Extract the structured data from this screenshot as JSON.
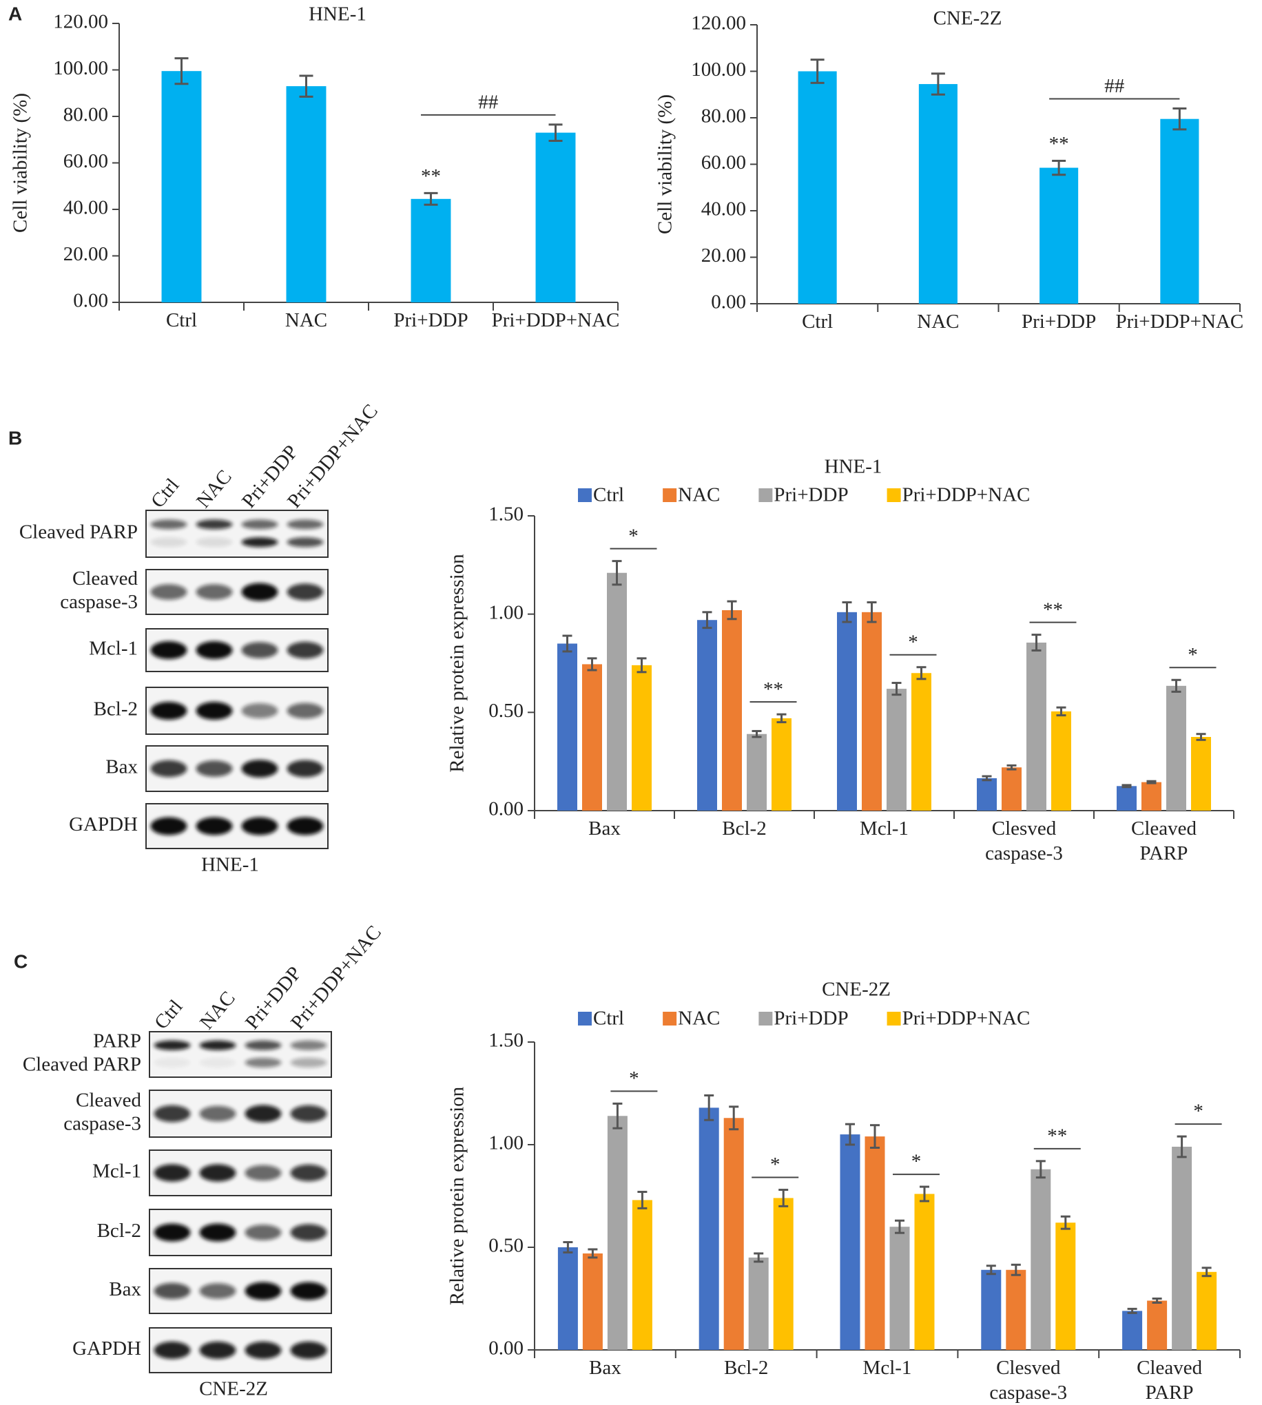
{
  "panel_labels": [
    "A",
    "B",
    "C"
  ],
  "chart_data": [
    {
      "type": "bar",
      "title": "HNE-1",
      "y_label": "Cell viability (%)",
      "color": "#00b0f0",
      "categories": [
        "Ctrl",
        "NAC",
        "Pri+DDP",
        "Pri+DDP+NAC"
      ],
      "values": [
        99.5,
        93,
        44.5,
        73
      ],
      "errors": [
        5.5,
        4.5,
        2.5,
        3.5
      ],
      "ylim": [
        0,
        120
      ],
      "yticks": [
        {
          "value": 0,
          "label": "0.00"
        },
        {
          "value": 20,
          "label": "20.00"
        },
        {
          "value": 40,
          "label": "40.00"
        },
        {
          "value": 60,
          "label": "60.00"
        },
        {
          "value": 80,
          "label": "80.00"
        },
        {
          "value": 100,
          "label": "100.00"
        },
        {
          "value": 120,
          "label": "120.00"
        }
      ],
      "annotations": [
        {
          "text": "**",
          "index": 2
        },
        {
          "text": "##",
          "from": 2,
          "to": 3
        }
      ]
    },
    {
      "type": "bar",
      "title": "CNE-2Z",
      "y_label": "Cell viability (%)",
      "color": "#00b0f0",
      "categories": [
        "Ctrl",
        "NAC",
        "Pri+DDP",
        "Pri+DDP+NAC"
      ],
      "values": [
        100,
        94.5,
        58.5,
        79.5
      ],
      "errors": [
        5,
        4.5,
        3,
        4.5
      ],
      "ylim": [
        0,
        120
      ],
      "yticks": [
        {
          "value": 0,
          "label": "0.00"
        },
        {
          "value": 20,
          "label": "20.00"
        },
        {
          "value": 40,
          "label": "40.00"
        },
        {
          "value": 60,
          "label": "60.00"
        },
        {
          "value": 80,
          "label": "80.00"
        },
        {
          "value": 100,
          "label": "100.00"
        },
        {
          "value": 120,
          "label": "120.00"
        }
      ],
      "annotations": [
        {
          "text": "**",
          "index": 2
        },
        {
          "text": "##",
          "from": 2,
          "to": 3
        }
      ]
    },
    {
      "type": "grouped_bar",
      "title": "HNE-1",
      "y_label": "Relative protein expression",
      "legend": "top",
      "categories": [
        "Bax",
        "Bcl-2",
        "Mcl-1",
        "Clesved caspase-3",
        "Cleaved PARP"
      ],
      "series": [
        {
          "name": "Ctrl",
          "color": "#4472c4",
          "values": [
            0.85,
            0.97,
            1.01,
            0.165,
            0.125
          ],
          "errors": [
            0.04,
            0.04,
            0.05,
            0.01,
            0.005
          ]
        },
        {
          "name": "NAC",
          "color": "#ed7d31",
          "values": [
            0.745,
            1.02,
            1.01,
            0.22,
            0.145
          ],
          "errors": [
            0.03,
            0.045,
            0.05,
            0.01,
            0.005
          ]
        },
        {
          "name": "Pri+DDP",
          "color": "#a5a5a5",
          "values": [
            1.21,
            0.39,
            0.62,
            0.855,
            0.635
          ],
          "errors": [
            0.06,
            0.015,
            0.03,
            0.04,
            0.03
          ]
        },
        {
          "name": "Pri+DDP+NAC",
          "color": "#ffc000",
          "values": [
            0.74,
            0.47,
            0.7,
            0.505,
            0.375
          ],
          "errors": [
            0.035,
            0.02,
            0.03,
            0.02,
            0.015
          ]
        }
      ],
      "ylim": [
        0,
        1.5
      ],
      "yticks": [
        {
          "value": 0,
          "label": "0.00"
        },
        {
          "value": 0.5,
          "label": "0.50"
        },
        {
          "value": 1,
          "label": "1.00"
        },
        {
          "value": 1.5,
          "label": "1.50"
        }
      ],
      "annotations": [
        {
          "text": "*",
          "category": 0,
          "from": 2,
          "to": 3
        },
        {
          "text": "**",
          "category": 1,
          "from": 2,
          "to": 3
        },
        {
          "text": "*",
          "category": 2,
          "from": 2,
          "to": 3
        },
        {
          "text": "**",
          "category": 3,
          "from": 2,
          "to": 3
        },
        {
          "text": "*",
          "category": 4,
          "from": 2,
          "to": 3
        }
      ]
    },
    {
      "type": "grouped_bar",
      "title": "CNE-2Z",
      "y_label": "Relative protein expression",
      "legend": "top",
      "categories": [
        "Bax",
        "Bcl-2",
        "Mcl-1",
        "Clesved caspase-3",
        "Cleaved PARP"
      ],
      "series": [
        {
          "name": "Ctrl",
          "color": "#4472c4",
          "values": [
            0.5,
            1.18,
            1.05,
            0.39,
            0.19
          ],
          "errors": [
            0.025,
            0.06,
            0.05,
            0.02,
            0.01
          ]
        },
        {
          "name": "NAC",
          "color": "#ed7d31",
          "values": [
            0.47,
            1.13,
            1.04,
            0.39,
            0.24
          ],
          "errors": [
            0.02,
            0.055,
            0.055,
            0.025,
            0.01
          ]
        },
        {
          "name": "Pri+DDP",
          "color": "#a5a5a5",
          "values": [
            1.14,
            0.45,
            0.6,
            0.88,
            0.99
          ],
          "errors": [
            0.06,
            0.02,
            0.03,
            0.04,
            0.05
          ]
        },
        {
          "name": "Pri+DDP+NAC",
          "color": "#ffc000",
          "values": [
            0.73,
            0.74,
            0.76,
            0.62,
            0.38
          ],
          "errors": [
            0.04,
            0.04,
            0.035,
            0.03,
            0.02
          ]
        }
      ],
      "ylim": [
        0,
        1.5
      ],
      "yticks": [
        {
          "value": 0,
          "label": "0.00"
        },
        {
          "value": 0.5,
          "label": "0.50"
        },
        {
          "value": 1,
          "label": "1.00"
        },
        {
          "value": 1.5,
          "label": "1.50"
        }
      ],
      "annotations": [
        {
          "text": "*",
          "category": 0,
          "from": 2,
          "to": 3
        },
        {
          "text": "*",
          "category": 1,
          "from": 2,
          "to": 3
        },
        {
          "text": "*",
          "category": 2,
          "from": 2,
          "to": 3
        },
        {
          "text": "**",
          "category": 3,
          "from": 2,
          "to": 3
        },
        {
          "text": "*",
          "category": 4,
          "from": 2,
          "to": 3
        }
      ]
    }
  ],
  "blots": [
    {
      "lanes": [
        "Ctrl",
        "NAC",
        "Pri+DDP",
        "Pri+DDP+NAC"
      ],
      "caption": "HNE-1",
      "rows": [
        {
          "label": [
            "Cleaved PARP"
          ]
        },
        {
          "label": [
            "Cleaved",
            "caspase-3"
          ]
        },
        {
          "label": [
            "Mcl-1"
          ]
        },
        {
          "label": [
            "Bcl-2"
          ]
        },
        {
          "label": [
            "Bax"
          ]
        },
        {
          "label": [
            "GAPDH"
          ]
        }
      ]
    },
    {
      "lanes": [
        "Ctrl",
        "NAC",
        "Pri+DDP",
        "Pri+DDP+NAC"
      ],
      "caption": "CNE-2Z",
      "rows": [
        {
          "label": [
            "PARP",
            "Cleaved PARP"
          ]
        },
        {
          "label": [
            "Cleaved",
            "caspase-3"
          ]
        },
        {
          "label": [
            "Mcl-1"
          ]
        },
        {
          "label": [
            "Bcl-2"
          ]
        },
        {
          "label": [
            "Bax"
          ]
        },
        {
          "label": [
            "GAPDH"
          ]
        }
      ]
    }
  ]
}
